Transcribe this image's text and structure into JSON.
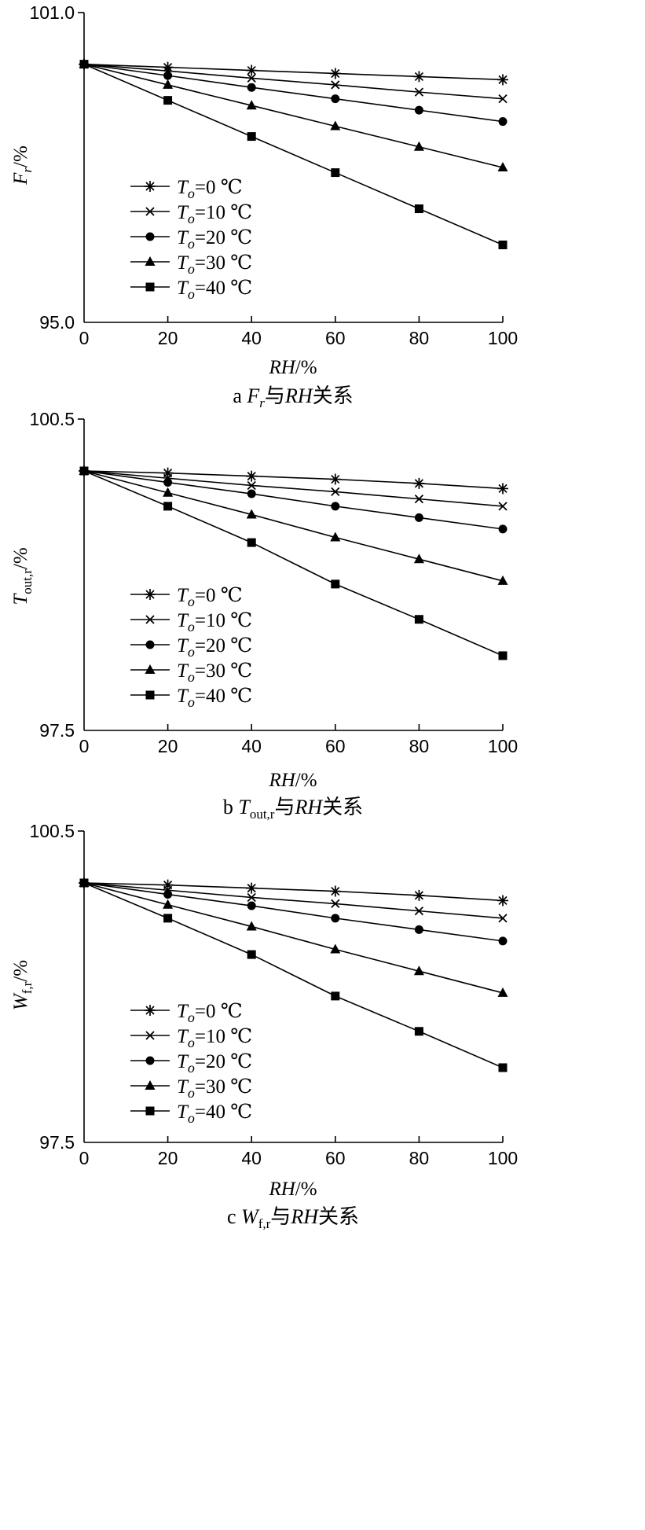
{
  "legend_labels": [
    {
      "var": "T",
      "sub": "o",
      "rest": "=0 ℃"
    },
    {
      "var": "T",
      "sub": "o",
      "rest": "=10 ℃"
    },
    {
      "var": "T",
      "sub": "o",
      "rest": "=20 ℃"
    },
    {
      "var": "T",
      "sub": "o",
      "rest": "=30 ℃"
    },
    {
      "var": "T",
      "sub": "o",
      "rest": "=40 ℃"
    }
  ],
  "captions": [
    {
      "letter": "a",
      "sym": "F",
      "sub": "r",
      "tail": "与",
      "var": "RH",
      "end": "关系"
    },
    {
      "letter": "b",
      "sym": "T",
      "sub": "out,r",
      "tail": "与",
      "var": "RH",
      "end": "关系"
    },
    {
      "letter": "c",
      "sym": "W",
      "sub": "f,r",
      "tail": "与",
      "var": "RH",
      "end": "关系"
    }
  ],
  "ylabels": [
    {
      "sym": "F",
      "sub": "r",
      "unit": "/%"
    },
    {
      "sym": "T",
      "sub": "out,r",
      "unit": "/%"
    },
    {
      "sym": "W",
      "sub": "f,r",
      "unit": "/%"
    }
  ],
  "xlabel": {
    "var": "RH",
    "unit": "/%"
  },
  "chart_data": [
    {
      "type": "line",
      "x": [
        0,
        20,
        40,
        60,
        80,
        100
      ],
      "xlim": [
        0,
        100
      ],
      "ylim": [
        95.0,
        101.0
      ],
      "ytick_labels": [
        "101.0",
        "95.0"
      ],
      "xtick_labels": [
        "0",
        "20",
        "40",
        "60",
        "80",
        "100"
      ],
      "series": [
        {
          "name": "To=0 ℃",
          "marker": "asterisk",
          "values": [
            100.0,
            99.94,
            99.88,
            99.82,
            99.76,
            99.7
          ]
        },
        {
          "name": "To=10 ℃",
          "marker": "x",
          "values": [
            100.0,
            99.87,
            99.73,
            99.6,
            99.46,
            99.33
          ]
        },
        {
          "name": "To=20 ℃",
          "marker": "circle",
          "values": [
            100.0,
            99.78,
            99.55,
            99.33,
            99.11,
            98.89
          ]
        },
        {
          "name": "To=30 ℃",
          "marker": "triangle",
          "values": [
            100.0,
            99.6,
            99.2,
            98.8,
            98.4,
            98.0
          ]
        },
        {
          "name": "To=40 ℃",
          "marker": "square",
          "values": [
            100.0,
            99.3,
            98.6,
            97.9,
            97.2,
            96.5
          ]
        }
      ]
    },
    {
      "type": "line",
      "x": [
        0,
        20,
        40,
        60,
        80,
        100
      ],
      "xlim": [
        0,
        100
      ],
      "ylim": [
        97.5,
        100.5
      ],
      "ytick_labels": [
        "100.5",
        "97.5"
      ],
      "xtick_labels": [
        "0",
        "20",
        "40",
        "60",
        "80",
        "100"
      ],
      "series": [
        {
          "name": "To=0 ℃",
          "marker": "asterisk",
          "values": [
            100.0,
            99.98,
            99.95,
            99.92,
            99.88,
            99.83
          ]
        },
        {
          "name": "To=10 ℃",
          "marker": "x",
          "values": [
            100.0,
            99.93,
            99.86,
            99.8,
            99.73,
            99.66
          ]
        },
        {
          "name": "To=20 ℃",
          "marker": "circle",
          "values": [
            100.0,
            99.89,
            99.78,
            99.66,
            99.55,
            99.44
          ]
        },
        {
          "name": "To=30 ℃",
          "marker": "triangle",
          "values": [
            100.0,
            99.79,
            99.58,
            99.36,
            99.15,
            98.94
          ]
        },
        {
          "name": "To=40 ℃",
          "marker": "square",
          "values": [
            100.0,
            99.66,
            99.31,
            98.91,
            98.57,
            98.22
          ]
        }
      ]
    },
    {
      "type": "line",
      "x": [
        0,
        20,
        40,
        60,
        80,
        100
      ],
      "xlim": [
        0,
        100
      ],
      "ylim": [
        97.5,
        100.5
      ],
      "ytick_labels": [
        "100.5",
        "97.5"
      ],
      "xtick_labels": [
        "0",
        "20",
        "40",
        "60",
        "80",
        "100"
      ],
      "series": [
        {
          "name": "To=0 ℃",
          "marker": "asterisk",
          "values": [
            100.0,
            99.98,
            99.95,
            99.92,
            99.88,
            99.83
          ]
        },
        {
          "name": "To=10 ℃",
          "marker": "x",
          "values": [
            100.0,
            99.93,
            99.86,
            99.8,
            99.73,
            99.66
          ]
        },
        {
          "name": "To=20 ℃",
          "marker": "circle",
          "values": [
            100.0,
            99.89,
            99.78,
            99.66,
            99.55,
            99.44
          ]
        },
        {
          "name": "To=30 ℃",
          "marker": "triangle",
          "values": [
            100.0,
            99.79,
            99.58,
            99.36,
            99.15,
            98.94
          ]
        },
        {
          "name": "To=40 ℃",
          "marker": "square",
          "values": [
            100.0,
            99.66,
            99.31,
            98.91,
            98.57,
            98.22
          ]
        }
      ]
    }
  ]
}
